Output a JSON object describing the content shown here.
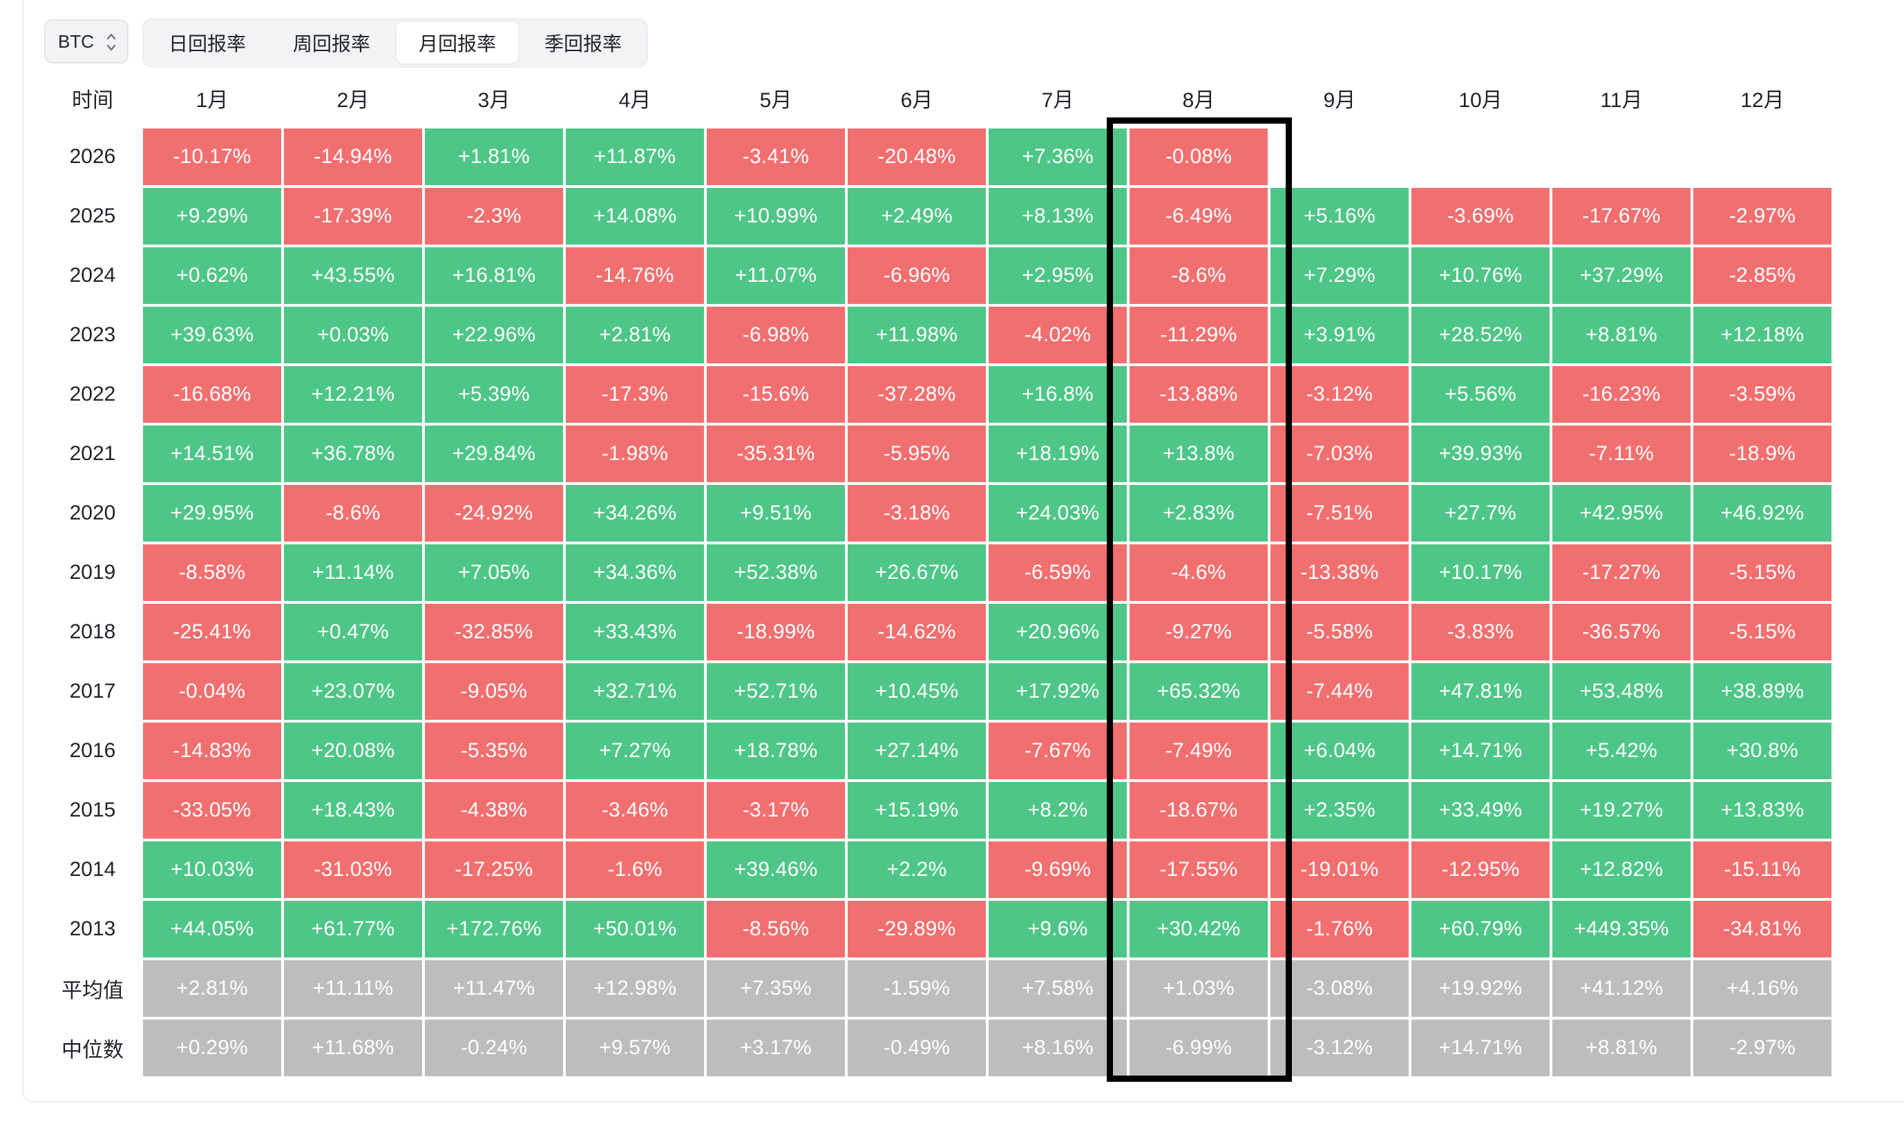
{
  "asset_select": {
    "value": "BTC"
  },
  "tabs": [
    "日回报率",
    "周回报率",
    "月回报率",
    "季回报率"
  ],
  "active_tab": 2,
  "table": {
    "time_header": "时间",
    "months": [
      "1月",
      "2月",
      "3月",
      "4月",
      "5月",
      "6月",
      "7月",
      "8月",
      "9月",
      "10月",
      "11月",
      "12月"
    ],
    "highlighted_month": "8月",
    "rows": [
      {
        "year": "2026",
        "values": [
          "-10.17%",
          "-14.94%",
          "+1.81%",
          "+11.87%",
          "-3.41%",
          "-20.48%",
          "+7.36%",
          "-0.08%",
          "",
          "",
          "",
          ""
        ]
      },
      {
        "year": "2025",
        "values": [
          "+9.29%",
          "-17.39%",
          "-2.3%",
          "+14.08%",
          "+10.99%",
          "+2.49%",
          "+8.13%",
          "-6.49%",
          "+5.16%",
          "-3.69%",
          "-17.67%",
          "-2.97%"
        ]
      },
      {
        "year": "2024",
        "values": [
          "+0.62%",
          "+43.55%",
          "+16.81%",
          "-14.76%",
          "+11.07%",
          "-6.96%",
          "+2.95%",
          "-8.6%",
          "+7.29%",
          "+10.76%",
          "+37.29%",
          "-2.85%"
        ]
      },
      {
        "year": "2023",
        "values": [
          "+39.63%",
          "+0.03%",
          "+22.96%",
          "+2.81%",
          "-6.98%",
          "+11.98%",
          "-4.02%",
          "-11.29%",
          "+3.91%",
          "+28.52%",
          "+8.81%",
          "+12.18%"
        ]
      },
      {
        "year": "2022",
        "values": [
          "-16.68%",
          "+12.21%",
          "+5.39%",
          "-17.3%",
          "-15.6%",
          "-37.28%",
          "+16.8%",
          "-13.88%",
          "-3.12%",
          "+5.56%",
          "-16.23%",
          "-3.59%"
        ]
      },
      {
        "year": "2021",
        "values": [
          "+14.51%",
          "+36.78%",
          "+29.84%",
          "-1.98%",
          "-35.31%",
          "-5.95%",
          "+18.19%",
          "+13.8%",
          "-7.03%",
          "+39.93%",
          "-7.11%",
          "-18.9%"
        ]
      },
      {
        "year": "2020",
        "values": [
          "+29.95%",
          "-8.6%",
          "-24.92%",
          "+34.26%",
          "+9.51%",
          "-3.18%",
          "+24.03%",
          "+2.83%",
          "-7.51%",
          "+27.7%",
          "+42.95%",
          "+46.92%"
        ]
      },
      {
        "year": "2019",
        "values": [
          "-8.58%",
          "+11.14%",
          "+7.05%",
          "+34.36%",
          "+52.38%",
          "+26.67%",
          "-6.59%",
          "-4.6%",
          "-13.38%",
          "+10.17%",
          "-17.27%",
          "-5.15%"
        ]
      },
      {
        "year": "2018",
        "values": [
          "-25.41%",
          "+0.47%",
          "-32.85%",
          "+33.43%",
          "-18.99%",
          "-14.62%",
          "+20.96%",
          "-9.27%",
          "-5.58%",
          "-3.83%",
          "-36.57%",
          "-5.15%"
        ]
      },
      {
        "year": "2017",
        "values": [
          "-0.04%",
          "+23.07%",
          "-9.05%",
          "+32.71%",
          "+52.71%",
          "+10.45%",
          "+17.92%",
          "+65.32%",
          "-7.44%",
          "+47.81%",
          "+53.48%",
          "+38.89%"
        ]
      },
      {
        "year": "2016",
        "values": [
          "-14.83%",
          "+20.08%",
          "-5.35%",
          "+7.27%",
          "+18.78%",
          "+27.14%",
          "-7.67%",
          "-7.49%",
          "+6.04%",
          "+14.71%",
          "+5.42%",
          "+30.8%"
        ]
      },
      {
        "year": "2015",
        "values": [
          "-33.05%",
          "+18.43%",
          "-4.38%",
          "-3.46%",
          "-3.17%",
          "+15.19%",
          "+8.2%",
          "-18.67%",
          "+2.35%",
          "+33.49%",
          "+19.27%",
          "+13.83%"
        ]
      },
      {
        "year": "2014",
        "values": [
          "+10.03%",
          "-31.03%",
          "-17.25%",
          "-1.6%",
          "+39.46%",
          "+2.2%",
          "-9.69%",
          "-17.55%",
          "-19.01%",
          "-12.95%",
          "+12.82%",
          "-15.11%"
        ]
      },
      {
        "year": "2013",
        "values": [
          "+44.05%",
          "+61.77%",
          "+172.76%",
          "+50.01%",
          "-8.56%",
          "-29.89%",
          "+9.6%",
          "+30.42%",
          "-1.76%",
          "+60.79%",
          "+449.35%",
          "-34.81%"
        ]
      }
    ],
    "stats": [
      {
        "label": "平均值",
        "values": [
          "+2.81%",
          "+11.11%",
          "+11.47%",
          "+12.98%",
          "+7.35%",
          "-1.59%",
          "+7.58%",
          "+1.03%",
          "-3.08%",
          "+19.92%",
          "+41.12%",
          "+4.16%"
        ]
      },
      {
        "label": "中位数",
        "values": [
          "+0.29%",
          "+11.68%",
          "-0.24%",
          "+9.57%",
          "+3.17%",
          "-0.49%",
          "+8.16%",
          "-6.99%",
          "-3.12%",
          "+14.71%",
          "+8.81%",
          "-2.97%"
        ]
      }
    ]
  },
  "colors": {
    "positive": "#4ec687",
    "negative": "#f26f70",
    "stat": "#bdbdbd",
    "highlight_border": "#000000"
  }
}
